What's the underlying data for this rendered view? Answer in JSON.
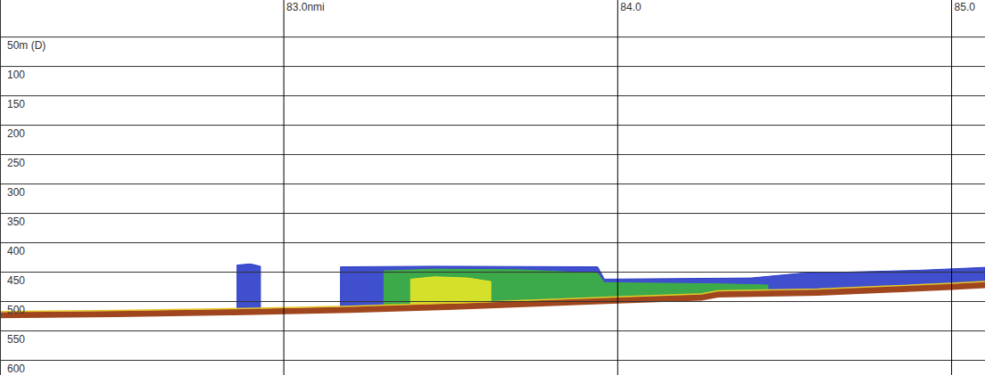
{
  "chart_data": {
    "type": "echogram",
    "xlim": [
      82.15,
      85.1
    ],
    "ylim": [
      -13,
      625
    ],
    "xticks": [
      {
        "value": 83,
        "label": "83.0nmi"
      },
      {
        "value": 84,
        "label": "84.0"
      },
      {
        "value": 85,
        "label": "85.0"
      }
    ],
    "yticks": [
      {
        "value": 50,
        "label": "50m (D)"
      },
      100,
      150,
      200,
      250,
      300,
      350,
      400,
      450,
      500,
      550,
      600
    ],
    "grid": true,
    "series": [
      {
        "type": "area",
        "color": "#2a3cc8",
        "x": [
          82.86,
          82.9,
          82.93,
          83.0,
          83.17,
          83.45,
          83.94,
          83.96,
          84.4,
          84.55,
          84.9,
          85.1
        ],
        "values": [
          438,
          436,
          440,
          null,
          441,
          440,
          441,
          462,
          460,
          452,
          447,
          442
        ]
      },
      {
        "type": "area",
        "color": "#3cb43c",
        "x": [
          83.3,
          83.45,
          83.7,
          83.94,
          83.96,
          84.3,
          84.45
        ],
        "values": [
          448,
          445,
          446,
          452,
          468,
          470,
          472
        ]
      },
      {
        "type": "area",
        "color": "#e6e628",
        "x": [
          83.38,
          83.45,
          83.55,
          83.62
        ],
        "values": [
          462,
          458,
          460,
          466
        ]
      },
      {
        "type": "line",
        "color": "#a0461e",
        "x": [
          82.15,
          82.5,
          82.85,
          83.2,
          83.6,
          84.0,
          84.25,
          84.3,
          84.6,
          84.8,
          85.0,
          85.1
        ],
        "values": [
          523,
          521,
          518,
          514,
          507,
          498,
          493,
          488,
          485,
          480,
          475,
          472
        ]
      }
    ]
  }
}
